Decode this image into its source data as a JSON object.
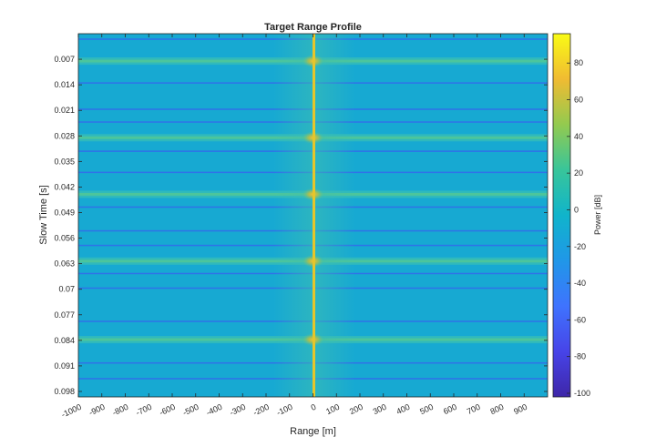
{
  "chart_data": {
    "type": "heatmap",
    "title": "Target Range Profile",
    "xlabel": "Range [m]",
    "ylabel": "Slow Time [s]",
    "colorbar_label": "Power [dB]",
    "colormap": "parula",
    "xlim": [
      -1000,
      1000
    ],
    "ylim": [
      0.0,
      0.0995
    ],
    "y_direction": "reversed",
    "clim": [
      -102,
      96
    ],
    "x_ticks": [
      -1000,
      -900,
      -800,
      -700,
      -600,
      -500,
      -400,
      -300,
      -200,
      -100,
      0,
      100,
      200,
      300,
      400,
      500,
      600,
      700,
      800,
      900
    ],
    "x_tick_labels": [
      "-1000",
      "-900",
      "-800",
      "-700",
      "-600",
      "-500",
      "-400",
      "-300",
      "-200",
      "-100",
      "0",
      "100",
      "200",
      "300",
      "400",
      "500",
      "600",
      "700",
      "800",
      "900"
    ],
    "y_ticks": [
      0.007,
      0.014,
      0.021,
      0.028,
      0.035,
      0.042,
      0.049,
      0.056,
      0.063,
      0.07,
      0.077,
      0.084,
      0.091,
      0.098
    ],
    "y_tick_labels": [
      "0.007",
      "0.014",
      "0.021",
      "0.028",
      "0.035",
      "0.042",
      "0.049",
      "0.056",
      "0.063",
      "0.07",
      "0.077",
      "0.084",
      "0.091",
      "0.098"
    ],
    "colorbar_ticks": [
      -100,
      -80,
      -60,
      -40,
      -20,
      0,
      20,
      40,
      60,
      80
    ],
    "colorbar_tick_labels": [
      "-100",
      "-80",
      "-60",
      "-40",
      "-20",
      "0",
      "20",
      "40",
      "60",
      "80"
    ],
    "background_power_db": -15,
    "target_range_m": 0,
    "target_peaks": [
      {
        "slow_time_s": 0.0075,
        "power_db": 88
      },
      {
        "slow_time_s": 0.0285,
        "power_db": 85
      },
      {
        "slow_time_s": 0.044,
        "power_db": 82
      },
      {
        "slow_time_s": 0.0623,
        "power_db": 85
      },
      {
        "slow_time_s": 0.0838,
        "power_db": 84
      }
    ],
    "bright_bands_slow_time_s": [
      0.0075,
      0.0285,
      0.044,
      0.0623,
      0.0838
    ],
    "dark_lines_slow_time_s": [
      0.0015,
      0.0135,
      0.0207,
      0.0242,
      0.0322,
      0.038,
      0.0475,
      0.054,
      0.058,
      0.0657,
      0.0697,
      0.0788,
      0.0902,
      0.0945
    ]
  }
}
